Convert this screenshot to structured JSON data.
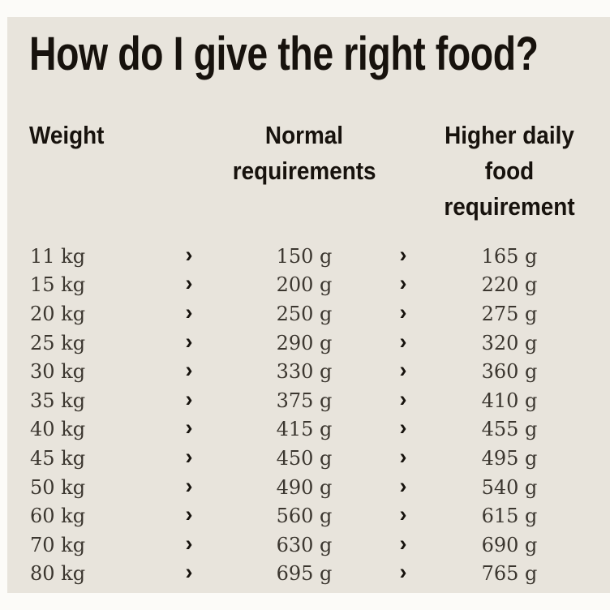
{
  "title": "How do I give the right food?",
  "colors": {
    "page_background": "#fcfbf8",
    "panel_background": "#e8e4dc",
    "heading_text": "#17120d",
    "body_text": "#3b362f"
  },
  "icons": {
    "arrow_icon": "›"
  },
  "table": {
    "columns": [
      {
        "label": "Weight"
      },
      {
        "label": "Normal\nrequirements"
      },
      {
        "label": "Higher daily\nfood\nrequirement"
      }
    ],
    "rows": [
      {
        "weight": "11 kg",
        "normal": "150 g",
        "higher": "165 g"
      },
      {
        "weight": "15 kg",
        "normal": "200 g",
        "higher": "220 g"
      },
      {
        "weight": "20 kg",
        "normal": "250 g",
        "higher": "275 g"
      },
      {
        "weight": "25 kg",
        "normal": "290 g",
        "higher": "320 g"
      },
      {
        "weight": "30 kg",
        "normal": "330 g",
        "higher": "360 g"
      },
      {
        "weight": "35 kg",
        "normal": "375 g",
        "higher": "410 g"
      },
      {
        "weight": "40 kg",
        "normal": "415 g",
        "higher": "455 g"
      },
      {
        "weight": "45 kg",
        "normal": "450 g",
        "higher": "495 g"
      },
      {
        "weight": "50 kg",
        "normal": "490 g",
        "higher": "540 g"
      },
      {
        "weight": "60 kg",
        "normal": "560 g",
        "higher": "615 g"
      },
      {
        "weight": "70 kg",
        "normal": "630 g",
        "higher": "690 g"
      },
      {
        "weight": "80 kg",
        "normal": "695 g",
        "higher": "765 g"
      }
    ]
  },
  "chart_data": {
    "type": "table",
    "title": "How do I give the right food?",
    "columns": [
      "Weight",
      "Normal requirements",
      "Higher daily food requirement"
    ],
    "rows": [
      [
        "11 kg",
        "150 g",
        "165 g"
      ],
      [
        "15 kg",
        "200 g",
        "220 g"
      ],
      [
        "20 kg",
        "250 g",
        "275 g"
      ],
      [
        "25 kg",
        "290 g",
        "320 g"
      ],
      [
        "30 kg",
        "330 g",
        "360 g"
      ],
      [
        "35 kg",
        "375 g",
        "410 g"
      ],
      [
        "40 kg",
        "415 g",
        "455 g"
      ],
      [
        "45 kg",
        "450 g",
        "495 g"
      ],
      [
        "50 kg",
        "490 g",
        "540 g"
      ],
      [
        "60 kg",
        "560 g",
        "615 g"
      ],
      [
        "70 kg",
        "630 g",
        "690 g"
      ],
      [
        "80 kg",
        "695 g",
        "765 g"
      ]
    ]
  }
}
